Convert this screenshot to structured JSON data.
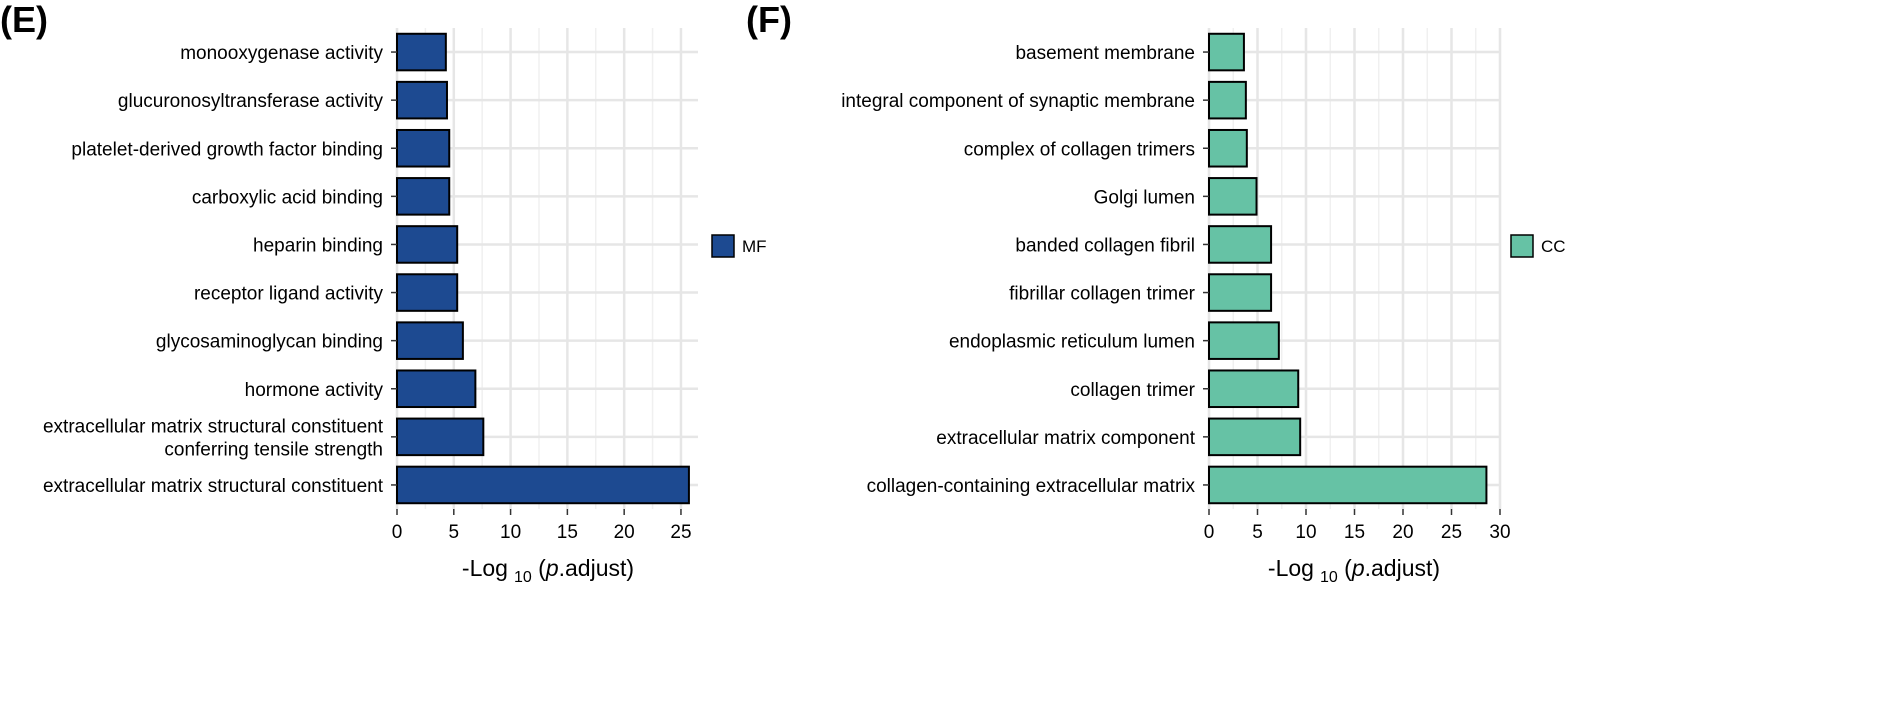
{
  "chart_data": [
    {
      "type": "bar",
      "orientation": "horizontal",
      "panel_label": "(E)",
      "title": "",
      "categories": [
        "monooxygenase activity",
        "glucuronosyltransferase activity",
        "platelet-derived growth factor binding",
        "carboxylic acid binding",
        "heparin binding",
        "receptor ligand activity",
        "glycosaminoglycan binding",
        "hormone activity",
        [
          "extracellular matrix structural constituent",
          "conferring tensile strength"
        ],
        "extracellular matrix structural constituent"
      ],
      "series": [
        {
          "name": "MF",
          "color": "#1d4a91",
          "values": [
            4.3,
            4.4,
            4.6,
            4.6,
            5.3,
            5.3,
            5.8,
            6.9,
            7.6,
            25.7
          ]
        }
      ],
      "xlabel_prefix": "-Log",
      "xlabel_sub": "10",
      "xlabel_open": " (",
      "xlabel_italic": "p",
      "xlabel_suffix": ".adjust)",
      "xlim": [
        0,
        26.5
      ],
      "xticks": [
        0,
        5,
        10,
        15,
        20,
        25
      ],
      "grid": true,
      "legend": "right"
    },
    {
      "type": "bar",
      "orientation": "horizontal",
      "panel_label": "(F)",
      "title": "",
      "categories": [
        "basement membrane",
        "integral component of synaptic membrane",
        "complex of collagen trimers",
        "Golgi lumen",
        "banded collagen fibril",
        "fibrillar collagen trimer",
        "endoplasmic reticulum lumen",
        "collagen trimer",
        "extracellular matrix component",
        "collagen-containing extracellular matrix"
      ],
      "series": [
        {
          "name": "CC",
          "color": "#66c2a5",
          "values": [
            3.6,
            3.8,
            3.9,
            4.9,
            6.4,
            6.4,
            7.2,
            9.2,
            9.4,
            28.6
          ]
        }
      ],
      "xlabel_prefix": "-Log",
      "xlabel_sub": "10",
      "xlabel_open": " (",
      "xlabel_italic": "p",
      "xlabel_suffix": ".adjust)",
      "xlim": [
        0,
        30
      ],
      "xticks": [
        0,
        5,
        10,
        15,
        20,
        25,
        30
      ],
      "grid": true,
      "legend": "right"
    }
  ]
}
